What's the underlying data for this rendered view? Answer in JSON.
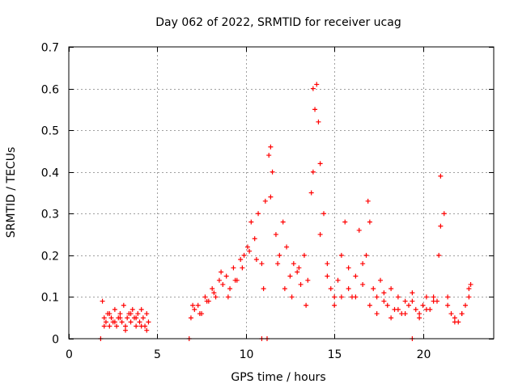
{
  "chart_data": {
    "type": "scatter",
    "title": "Day 062 of 2022, SRMTID for receiver ucag",
    "xlabel": "GPS time / hours",
    "ylabel": "SRMTID / TECUs",
    "xlim": [
      0,
      24
    ],
    "ylim": [
      0,
      0.7
    ],
    "xticks": [
      0,
      5,
      10,
      15,
      20
    ],
    "yticks": [
      0,
      0.1,
      0.2,
      0.3,
      0.4,
      0.5,
      0.6,
      0.7
    ],
    "x_tick_labels": [
      "0",
      "5",
      "10",
      "15",
      "20"
    ],
    "y_tick_labels": [
      "0",
      "0.1",
      "0.2",
      "0.3",
      "0.4",
      "0.5",
      "0.6",
      "0.7"
    ],
    "grid": true,
    "marker": "plus",
    "series": [
      {
        "name": "SRMTID",
        "color": "#ff0000",
        "x": [
          1.9,
          2.0,
          2.1,
          2.2,
          2.3,
          2.4,
          2.5,
          2.6,
          2.7,
          2.8,
          2.9,
          3.0,
          3.1,
          3.2,
          3.3,
          3.4,
          3.5,
          3.6,
          3.7,
          3.8,
          3.9,
          4.0,
          4.1,
          4.2,
          4.3,
          4.4,
          4.5,
          6.9,
          7.1,
          7.3,
          7.5,
          7.7,
          7.9,
          8.1,
          8.3,
          8.5,
          8.7,
          8.9,
          9.1,
          9.3,
          9.5,
          9.7,
          9.9,
          10.1,
          10.3,
          10.5,
          10.7,
          10.9,
          11.1,
          11.3,
          11.4,
          11.5,
          11.7,
          11.9,
          12.1,
          12.3,
          12.5,
          12.7,
          12.9,
          13.1,
          13.3,
          13.5,
          13.7,
          13.8,
          13.9,
          14.0,
          14.1,
          14.2,
          14.4,
          14.6,
          14.8,
          15.0,
          15.2,
          15.4,
          15.6,
          15.8,
          16.0,
          16.2,
          16.4,
          16.6,
          16.8,
          16.9,
          17.0,
          17.2,
          17.4,
          17.6,
          17.8,
          18.0,
          18.2,
          18.4,
          18.6,
          18.8,
          19.0,
          19.2,
          19.4,
          19.6,
          19.8,
          20.0,
          20.2,
          20.4,
          20.6,
          20.8,
          20.9,
          21.0,
          21.2,
          21.4,
          21.6,
          21.8,
          22.0,
          22.2,
          22.4,
          22.6,
          22.7,
          2.0,
          2.3,
          2.6,
          2.9,
          3.2,
          3.5,
          3.8,
          4.1,
          4.4,
          7.0,
          7.4,
          7.8,
          8.2,
          8.6,
          9.0,
          9.4,
          9.8,
          10.2,
          10.6,
          11.0,
          11.4,
          11.8,
          12.2,
          12.6,
          13.0,
          13.4,
          13.8,
          14.2,
          14.6,
          15.0,
          15.4,
          15.8,
          16.2,
          16.6,
          17.0,
          17.4,
          17.8,
          18.2,
          18.6,
          19.0,
          19.4,
          19.8,
          20.2,
          20.6,
          21.0,
          21.4,
          21.8,
          22.2,
          22.6,
          1.8,
          6.8,
          10.9,
          11.2,
          19.4
        ],
        "y": [
          0.09,
          0.05,
          0.04,
          0.06,
          0.03,
          0.05,
          0.04,
          0.07,
          0.03,
          0.05,
          0.06,
          0.04,
          0.08,
          0.03,
          0.05,
          0.06,
          0.04,
          0.07,
          0.05,
          0.03,
          0.06,
          0.04,
          0.07,
          0.05,
          0.03,
          0.06,
          0.04,
          0.05,
          0.07,
          0.08,
          0.06,
          0.1,
          0.09,
          0.12,
          0.1,
          0.14,
          0.13,
          0.15,
          0.12,
          0.17,
          0.14,
          0.19,
          0.2,
          0.22,
          0.28,
          0.24,
          0.3,
          0.18,
          0.33,
          0.44,
          0.46,
          0.4,
          0.25,
          0.2,
          0.28,
          0.22,
          0.15,
          0.18,
          0.16,
          0.13,
          0.2,
          0.14,
          0.35,
          0.6,
          0.55,
          0.61,
          0.52,
          0.42,
          0.3,
          0.18,
          0.12,
          0.1,
          0.14,
          0.2,
          0.28,
          0.12,
          0.1,
          0.15,
          0.26,
          0.18,
          0.2,
          0.33,
          0.28,
          0.12,
          0.1,
          0.14,
          0.09,
          0.08,
          0.12,
          0.07,
          0.1,
          0.06,
          0.09,
          0.08,
          0.11,
          0.07,
          0.06,
          0.08,
          0.1,
          0.07,
          0.09,
          0.09,
          0.2,
          0.39,
          0.3,
          0.1,
          0.06,
          0.05,
          0.04,
          0.06,
          0.08,
          0.12,
          0.13,
          0.03,
          0.06,
          0.04,
          0.05,
          0.02,
          0.06,
          0.05,
          0.03,
          0.02,
          0.08,
          0.06,
          0.09,
          0.11,
          0.16,
          0.1,
          0.14,
          0.17,
          0.21,
          0.19,
          0.12,
          0.34,
          0.18,
          0.12,
          0.1,
          0.17,
          0.08,
          0.4,
          0.25,
          0.15,
          0.08,
          0.1,
          0.17,
          0.1,
          0.13,
          0.08,
          0.06,
          0.11,
          0.05,
          0.07,
          0.06,
          0.09,
          0.05,
          0.07,
          0.1,
          0.27,
          0.08,
          0.04,
          0.06,
          0.1,
          0.0,
          0.0,
          0.0,
          0.0,
          0.0
        ]
      }
    ]
  }
}
